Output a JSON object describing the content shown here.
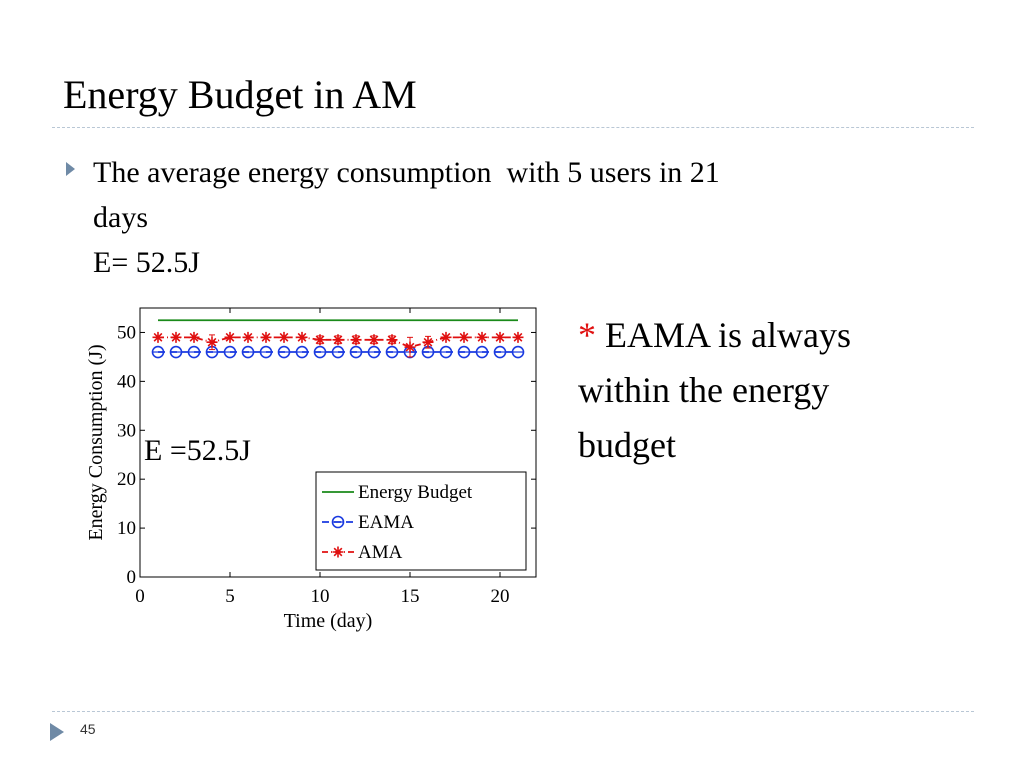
{
  "slide": {
    "title": "Energy Budget in AM",
    "bullet_line1": "The average energy consumption  with 5 users in 21",
    "bullet_line2": "days",
    "bullet_line3": "E= 52.5J",
    "note_star": "*",
    "note_line1": " EAMA is always",
    "note_line2": "within the energy",
    "note_line3": "budget",
    "page_number": "45",
    "colors": {
      "bullet": "#6f8aa6",
      "rule": "#b9c7d5",
      "star": "#e01010"
    },
    "icons": {
      "bullet": "triangle-bullet-icon",
      "footer": "triangle-footer-icon"
    }
  },
  "chart_data": {
    "type": "line",
    "xlabel": "Time (day)",
    "ylabel": "Energy Consumption (J)",
    "xlim": [
      0,
      22
    ],
    "ylim": [
      0,
      55
    ],
    "xticks": [
      0,
      5,
      10,
      15,
      20
    ],
    "yticks": [
      0,
      10,
      20,
      30,
      40,
      50
    ],
    "x": [
      1,
      2,
      3,
      4,
      5,
      6,
      7,
      8,
      9,
      10,
      11,
      12,
      13,
      14,
      15,
      16,
      17,
      18,
      19,
      20,
      21
    ],
    "annotation": "E =52.5J",
    "legend_position": "lower-right",
    "grid": false,
    "series": [
      {
        "name": "Energy Budget",
        "color": "#1a8a1a",
        "marker": "none",
        "style": "solid",
        "values": [
          52.5,
          52.5,
          52.5,
          52.5,
          52.5,
          52.5,
          52.5,
          52.5,
          52.5,
          52.5,
          52.5,
          52.5,
          52.5,
          52.5,
          52.5,
          52.5,
          52.5,
          52.5,
          52.5,
          52.5,
          52.5
        ]
      },
      {
        "name": "EAMA",
        "color": "#1a3ae0",
        "marker": "circle",
        "style": "dashed",
        "values": [
          46,
          46,
          46,
          46,
          46,
          46,
          46,
          46,
          46,
          46,
          46,
          46,
          46,
          46,
          46,
          46,
          46,
          46,
          46,
          46,
          46
        ]
      },
      {
        "name": "AMA",
        "color": "#e01010",
        "marker": "star",
        "style": "dashdot",
        "values": [
          49,
          49,
          49,
          48,
          49,
          49,
          49,
          49,
          49,
          48.5,
          48.5,
          48.5,
          48.5,
          48.5,
          47,
          48,
          49,
          49,
          49,
          49,
          49
        ],
        "errors": [
          0,
          0,
          0,
          1.5,
          0,
          0,
          0,
          0,
          0,
          0.8,
          0.8,
          0.8,
          0.8,
          0.8,
          2,
          1.2,
          0,
          0,
          0,
          0,
          0
        ]
      }
    ]
  }
}
